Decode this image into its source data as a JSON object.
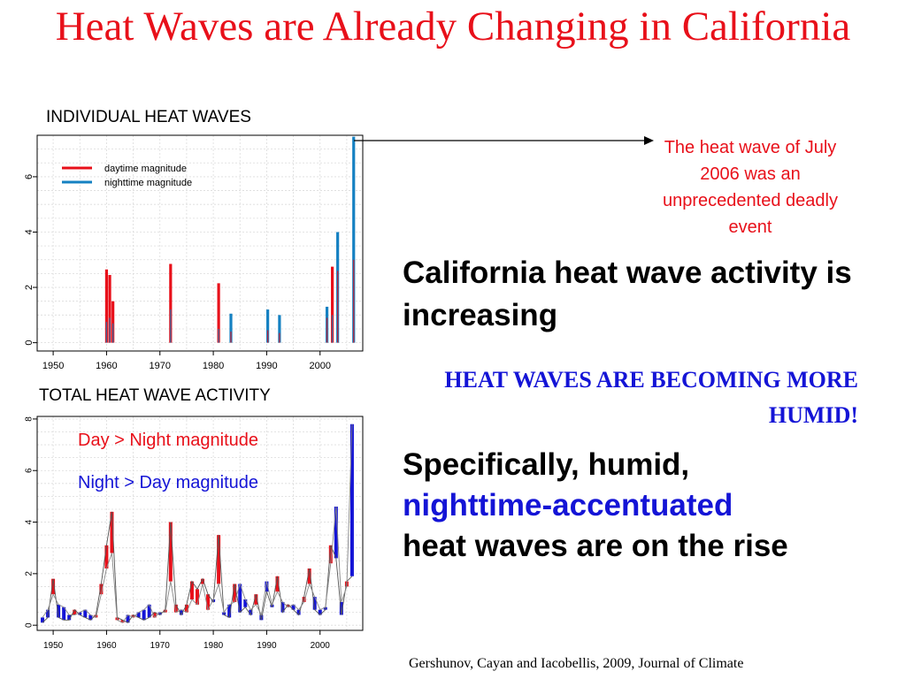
{
  "slide": {
    "title": "Heat Waves are Already Changing in California",
    "callout": "The heat wave of July 2006 was an unprecedented deadly event",
    "point1": "California heat wave activity is increasing",
    "humid_banner": "HEAT WAVES ARE BECOMING MORE HUMID!",
    "point2_pre": "Specifically, humid,",
    "point2_highlight": "nighttime-accentuated",
    "point2_post": "heat waves are on the rise",
    "citation": "Gershunov, Cayan and Iacobellis, 2009, Journal of Climate"
  },
  "colors": {
    "title": "#e8101a",
    "day": "#e8101a",
    "night": "#1581c2",
    "night_dark": "#1414d6",
    "callout": "#e8101a"
  },
  "chart_data": [
    {
      "type": "bar",
      "title": "INDIVIDUAL HEAT WAVES",
      "legend": [
        "daytime magnitude",
        "nighttime magnitude"
      ],
      "legend_position": "top-left",
      "xlim": [
        1947,
        2008
      ],
      "ylim": [
        -0.3,
        7.5
      ],
      "xticks": [
        1950,
        1960,
        1970,
        1980,
        1990,
        2000
      ],
      "yticks": [
        0,
        2,
        4,
        6
      ],
      "grid": true,
      "events": [
        {
          "year": 1960.0,
          "day": 2.65,
          "night": 0.75
        },
        {
          "year": 1960.6,
          "day": 2.45,
          "night": 0.9
        },
        {
          "year": 1961.2,
          "day": 1.5,
          "night": 0.7
        },
        {
          "year": 1972.0,
          "day": 2.85,
          "night": 1.2
        },
        {
          "year": 1981.0,
          "day": 2.15,
          "night": 0.5
        },
        {
          "year": 1983.3,
          "day": 0.4,
          "night": 1.05
        },
        {
          "year": 1990.2,
          "day": 0.45,
          "night": 1.2
        },
        {
          "year": 1992.4,
          "day": 0.35,
          "night": 1.0
        },
        {
          "year": 2001.3,
          "day": 0.9,
          "night": 1.3
        },
        {
          "year": 2002.3,
          "day": 2.75,
          "night": 1.0
        },
        {
          "year": 2003.3,
          "day": 2.6,
          "night": 4.0
        },
        {
          "year": 2006.3,
          "day": 3.0,
          "night": 7.45
        }
      ]
    },
    {
      "type": "line",
      "title": "TOTAL HEAT WAVE ACTIVITY",
      "legend": [
        "Day > Night magnitude",
        "Night > Day magnitude"
      ],
      "legend_position": "top-left",
      "xlim": [
        1947,
        2008
      ],
      "ylim": [
        -0.2,
        8.1
      ],
      "xticks": [
        1950,
        1960,
        1970,
        1980,
        1990,
        2000
      ],
      "yticks": [
        0,
        2,
        4,
        6,
        8
      ],
      "grid": true,
      "x": [
        1948,
        1949,
        1950,
        1951,
        1952,
        1953,
        1954,
        1955,
        1956,
        1957,
        1958,
        1959,
        1960,
        1961,
        1962,
        1963,
        1964,
        1965,
        1966,
        1967,
        1968,
        1969,
        1970,
        1971,
        1972,
        1973,
        1974,
        1975,
        1976,
        1977,
        1978,
        1979,
        1980,
        1981,
        1982,
        1983,
        1984,
        1985,
        1986,
        1987,
        1988,
        1989,
        1990,
        1991,
        1992,
        1993,
        1994,
        1995,
        1996,
        1997,
        1998,
        1999,
        2000,
        2001,
        2002,
        2003,
        2004,
        2005,
        2006
      ],
      "series": [
        {
          "name": "Day > Night magnitude",
          "values": [
            0.1,
            0.3,
            1.8,
            0.3,
            0.2,
            0.2,
            0.6,
            0.4,
            0.3,
            0.2,
            0.4,
            1.6,
            3.1,
            4.4,
            0.3,
            0.2,
            0.1,
            0.4,
            0.3,
            0.2,
            0.3,
            0.5,
            0.4,
            0.6,
            4.0,
            0.8,
            0.4,
            0.8,
            1.7,
            1.4,
            1.8,
            1.2,
            0.9,
            3.5,
            0.4,
            0.3,
            1.6,
            0.5,
            0.7,
            0.4,
            1.2,
            0.2,
            1.3,
            0.7,
            1.9,
            0.5,
            0.8,
            0.6,
            0.4,
            1.1,
            2.2,
            0.6,
            0.4,
            0.6,
            3.1,
            2.6,
            0.4,
            1.7,
            1.9
          ]
        },
        {
          "name": "Night > Day magnitude",
          "values": [
            0.3,
            0.6,
            1.2,
            0.8,
            0.7,
            0.4,
            0.4,
            0.5,
            0.6,
            0.4,
            0.3,
            1.2,
            2.2,
            2.8,
            0.2,
            0.1,
            0.4,
            0.3,
            0.5,
            0.6,
            0.8,
            0.3,
            0.5,
            0.5,
            1.7,
            0.5,
            0.6,
            0.5,
            1.0,
            0.8,
            1.6,
            0.6,
            1.0,
            1.6,
            0.5,
            0.8,
            0.9,
            1.6,
            1.0,
            0.6,
            0.8,
            0.4,
            1.7,
            0.8,
            1.3,
            0.9,
            0.7,
            0.8,
            0.6,
            0.9,
            1.6,
            1.1,
            0.6,
            0.7,
            2.4,
            4.6,
            0.9,
            1.5,
            7.8
          ]
        }
      ]
    }
  ]
}
